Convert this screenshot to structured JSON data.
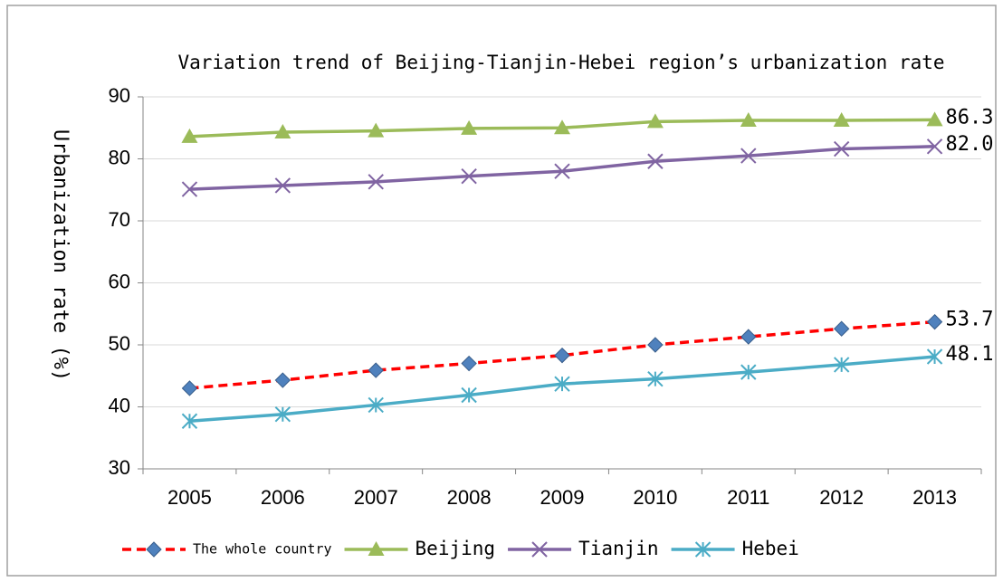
{
  "chart_data": {
    "type": "line",
    "title": "Variation trend of Beijing-Tianjin-Hebei region’s urbanization rate",
    "y_label": "Urbanization rate (%)",
    "categories": [
      "2005",
      "2006",
      "2007",
      "2008",
      "2009",
      "2010",
      "2011",
      "2012",
      "2013"
    ],
    "series": [
      {
        "name": "The whole country",
        "color": "#ff0000",
        "marker_color": "#4f81bd",
        "marker": "diamond",
        "dashed": true,
        "values": [
          43.0,
          44.3,
          45.9,
          47.0,
          48.3,
          50.0,
          51.3,
          52.6,
          53.7
        ],
        "value_labels": [
          null,
          null,
          null,
          null,
          null,
          null,
          null,
          null,
          "53.7"
        ]
      },
      {
        "name": "Beijing",
        "color": "#9bbb59",
        "marker_color": "#9bbb59",
        "marker": "triangle",
        "dashed": false,
        "values": [
          83.6,
          84.3,
          84.5,
          84.9,
          85.0,
          86.0,
          86.2,
          86.2,
          86.3
        ],
        "value_labels": [
          null,
          null,
          null,
          null,
          null,
          null,
          null,
          null,
          "86.3"
        ]
      },
      {
        "name": "Tianjin",
        "color": "#8064a2",
        "marker_color": "#8064a2",
        "marker": "x",
        "dashed": false,
        "values": [
          75.1,
          75.7,
          76.3,
          77.2,
          78.0,
          79.6,
          80.5,
          81.6,
          82.0
        ],
        "value_labels": [
          null,
          null,
          null,
          null,
          null,
          null,
          null,
          null,
          "82.0"
        ]
      },
      {
        "name": "Hebei",
        "color": "#4bacc6",
        "marker_color": "#4bacc6",
        "marker": "star",
        "dashed": false,
        "values": [
          37.7,
          38.8,
          40.3,
          41.9,
          43.7,
          44.5,
          45.6,
          46.8,
          48.1
        ],
        "value_labels": [
          null,
          null,
          null,
          null,
          null,
          null,
          null,
          null,
          "48.1"
        ]
      }
    ],
    "ylim": [
      30,
      90
    ],
    "yticks": [
      30,
      40,
      50,
      60,
      70,
      80,
      90
    ],
    "grid": true,
    "legend": "bottom"
  }
}
